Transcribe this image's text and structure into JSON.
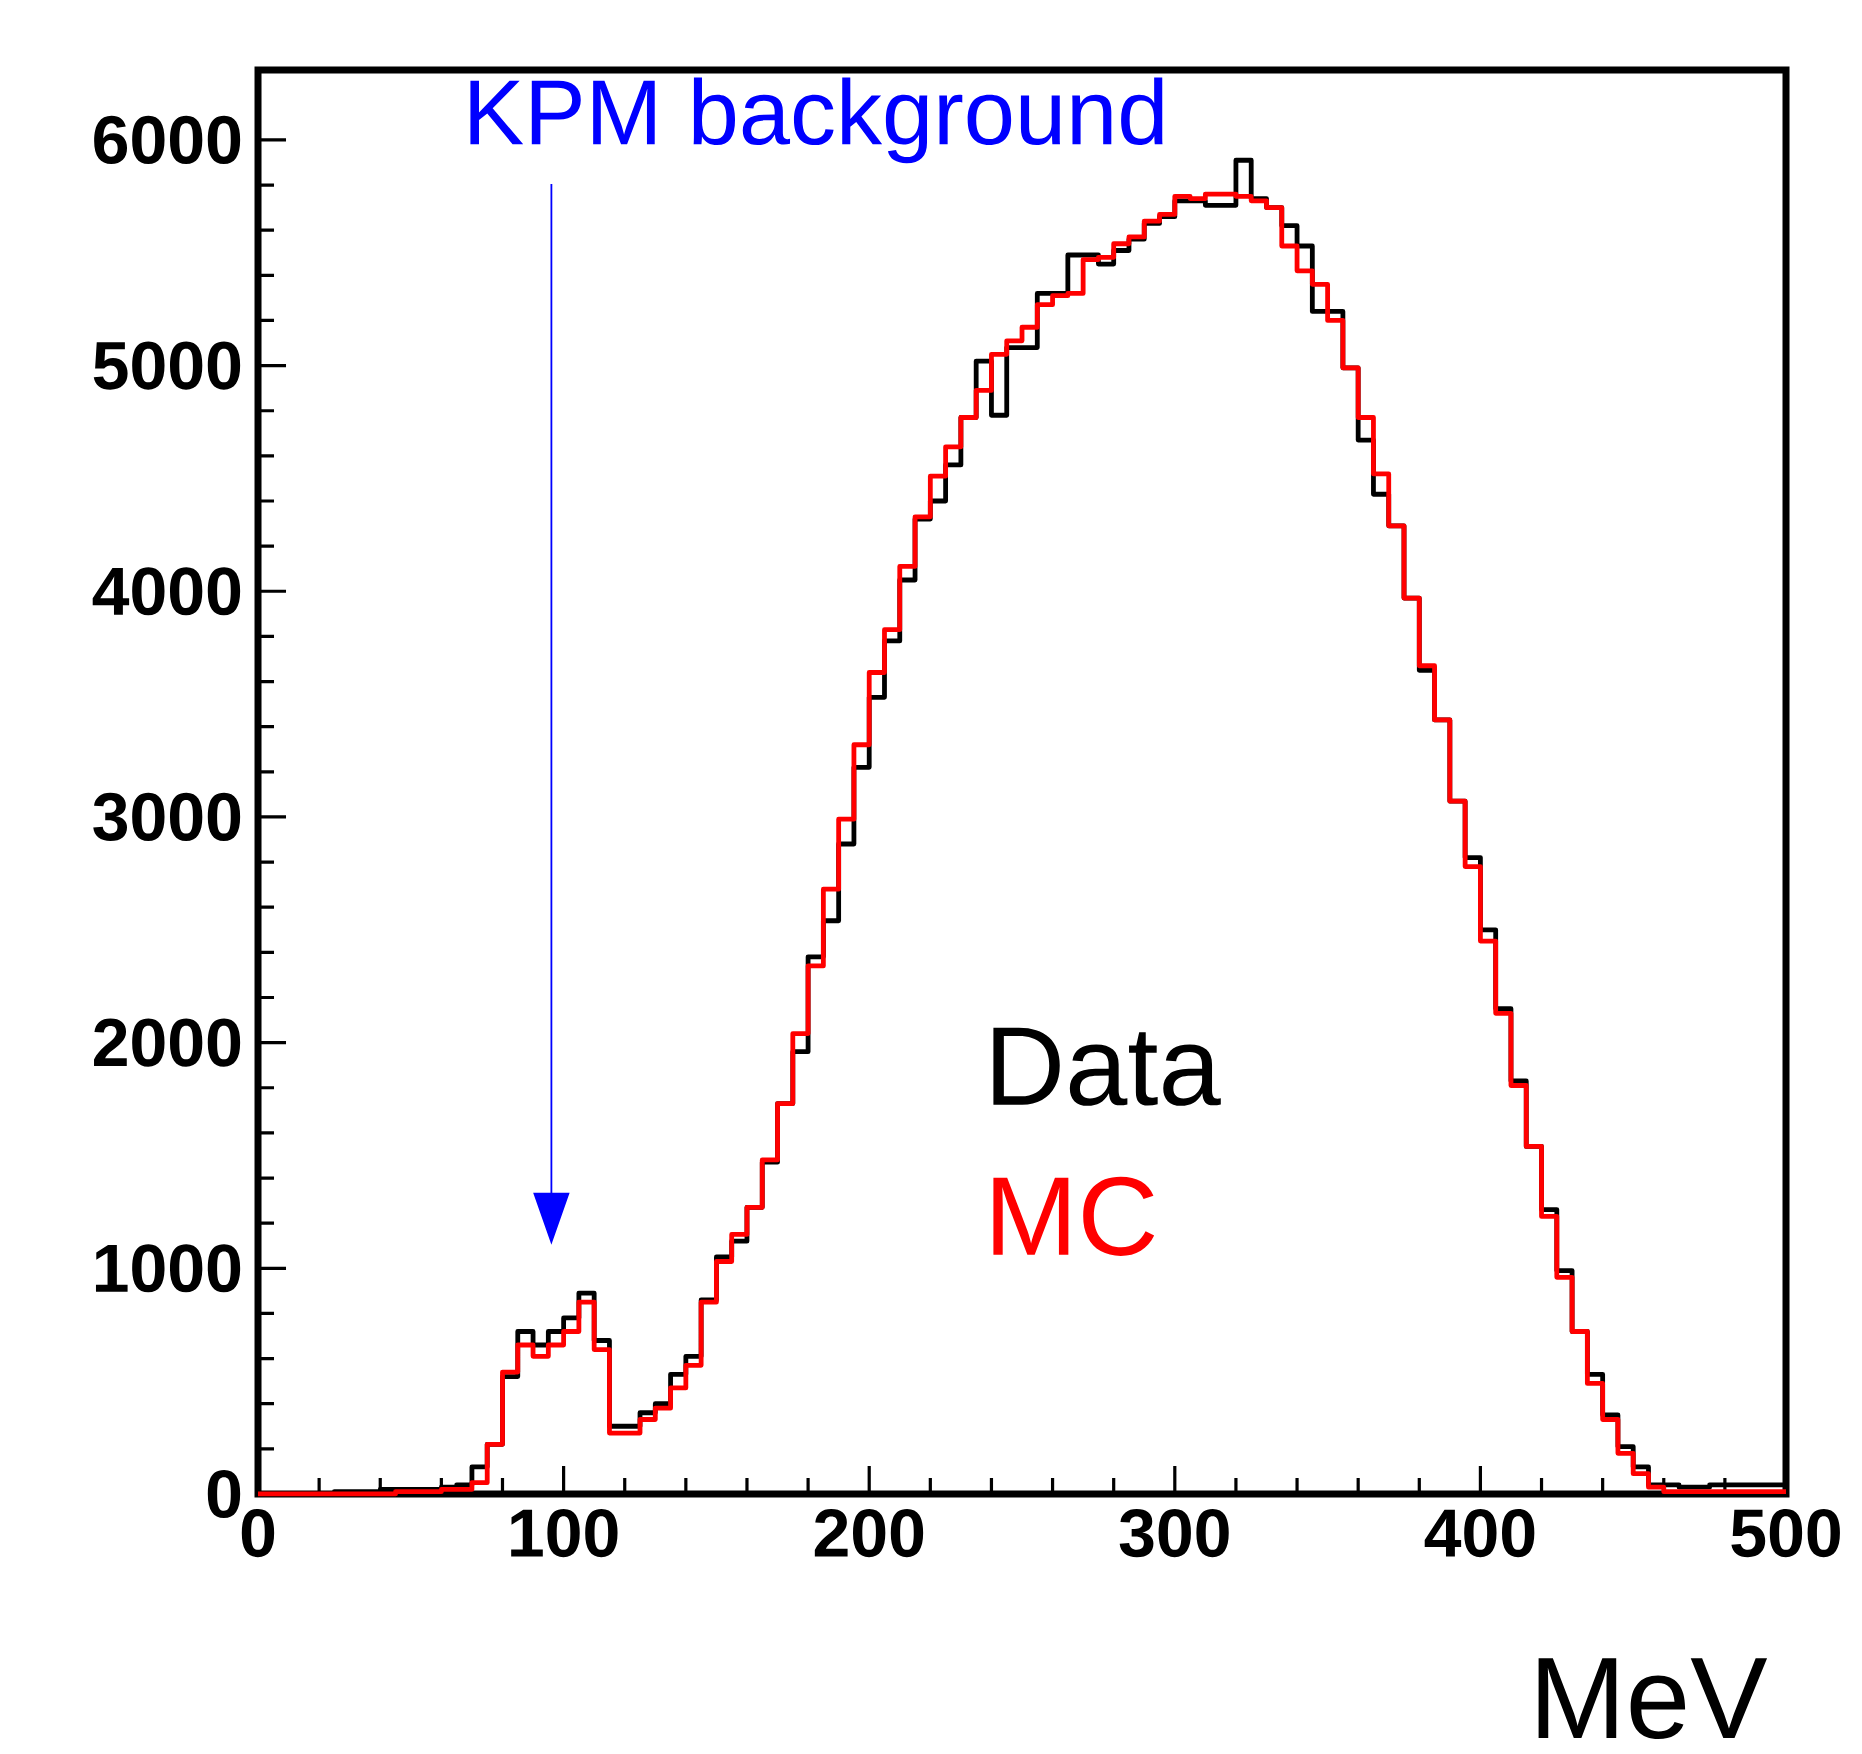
{
  "chart_data": {
    "type": "histogram",
    "xlabel": "MeV",
    "bins": [
      0,
      5,
      10,
      15,
      20,
      25,
      30,
      35,
      40,
      45,
      50,
      55,
      60,
      65,
      70,
      75,
      80,
      85,
      90,
      95,
      100,
      105,
      110,
      115,
      120,
      125,
      130,
      135,
      140,
      145,
      150,
      155,
      160,
      165,
      170,
      175,
      180,
      185,
      190,
      195,
      200,
      205,
      210,
      215,
      220,
      225,
      230,
      235,
      240,
      245,
      250,
      255,
      260,
      265,
      270,
      275,
      280,
      285,
      290,
      295,
      300,
      305,
      310,
      315,
      320,
      325,
      330,
      335,
      340,
      345,
      350,
      355,
      360,
      365,
      370,
      375,
      380,
      385,
      390,
      395,
      400,
      405,
      410,
      415,
      420,
      425,
      430,
      435,
      440,
      445,
      450,
      455,
      460,
      465,
      470,
      475,
      480,
      485,
      490,
      495,
      500
    ],
    "series": [
      {
        "name": "Data",
        "color": "#000000",
        "values": [
          0,
          0,
          0,
          0,
          0,
          10,
          10,
          10,
          20,
          20,
          20,
          20,
          30,
          40,
          120,
          220,
          520,
          720,
          660,
          720,
          780,
          890,
          680,
          300,
          300,
          360,
          400,
          530,
          610,
          860,
          1050,
          1120,
          1270,
          1470,
          1730,
          1960,
          2380,
          2540,
          2880,
          3220,
          3530,
          3780,
          4050,
          4320,
          4400,
          4560,
          4770,
          5020,
          4780,
          5080,
          5080,
          5320,
          5320,
          5490,
          5490,
          5450,
          5510,
          5560,
          5630,
          5660,
          5730,
          5730,
          5710,
          5710,
          5910,
          5740,
          5700,
          5620,
          5530,
          5240,
          5240,
          4990,
          4670,
          4430,
          4290,
          3970,
          3650,
          3430,
          3070,
          2820,
          2500,
          2150,
          1830,
          1540,
          1260,
          990,
          720,
          530,
          350,
          210,
          120,
          40,
          40,
          30,
          30,
          40,
          40,
          40,
          40,
          40
        ]
      },
      {
        "name": "MC",
        "color": "#ff0000",
        "values": [
          0,
          0,
          0,
          0,
          0,
          0,
          0,
          0,
          0,
          10,
          10,
          10,
          20,
          20,
          50,
          220,
          540,
          660,
          610,
          660,
          720,
          850,
          640,
          270,
          270,
          330,
          380,
          470,
          570,
          850,
          1030,
          1150,
          1270,
          1480,
          1730,
          2040,
          2340,
          2680,
          2990,
          3320,
          3640,
          3830,
          4110,
          4330,
          4510,
          4640,
          4770,
          4890,
          5050,
          5110,
          5170,
          5270,
          5310,
          5320,
          5470,
          5480,
          5540,
          5570,
          5640,
          5670,
          5750,
          5740,
          5760,
          5760,
          5750,
          5730,
          5700,
          5530,
          5420,
          5360,
          5200,
          4990,
          4770,
          4520,
          4290,
          3970,
          3670,
          3430,
          3070,
          2780,
          2450,
          2130,
          1810,
          1540,
          1230,
          960,
          720,
          490,
          330,
          180,
          90,
          30,
          10,
          10,
          10,
          10,
          10,
          10,
          10,
          10
        ]
      }
    ],
    "annotations": [
      "KPM background"
    ],
    "xlim": [
      0,
      500
    ],
    "ylim": [
      0,
      6310
    ],
    "xticks": [
      0,
      100,
      200,
      300,
      400,
      500
    ],
    "yticks": [
      0,
      1000,
      2000,
      3000,
      4000,
      5000,
      6000
    ],
    "legend": "bottom"
  }
}
